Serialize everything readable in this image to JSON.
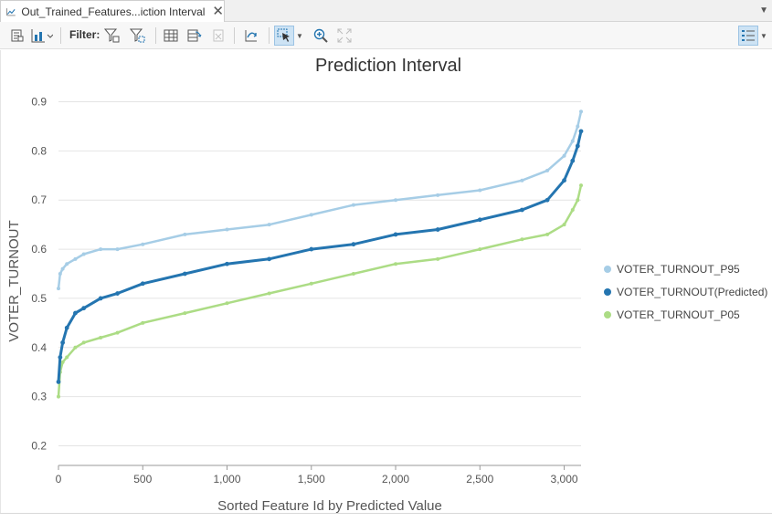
{
  "tab": {
    "title": "Out_Trained_Features...iction Interval",
    "close": "✕",
    "icon": "line-chart-icon"
  },
  "toolbar": {
    "filter_label": "Filter:",
    "icons": [
      "properties-icon",
      "chart-type-icon",
      "filter-by-extent-icon",
      "filter-by-selection-icon",
      "table-icon",
      "switch-selection-icon",
      "clear-selection-icon",
      "export-icon",
      "select-tool-icon",
      "zoom-in-icon",
      "full-extent-icon",
      "legend-toggle-icon"
    ]
  },
  "colors": {
    "p95": "#a6cde6",
    "predicted": "#2475b0",
    "p05": "#acdc85",
    "grid": "#e4e4e4",
    "axis_text": "#555555"
  },
  "chart_data": {
    "type": "line",
    "title": "Prediction Interval",
    "xlabel": "Sorted Feature Id by Predicted Value",
    "ylabel": "VOTER_TURNOUT",
    "xlim": [
      0,
      3100
    ],
    "ylim": [
      0.16,
      0.94
    ],
    "xticks": [
      0,
      500,
      1000,
      1500,
      2000,
      2500,
      3000
    ],
    "xtick_labels": [
      "0",
      "500",
      "1,000",
      "1,500",
      "2,000",
      "2,500",
      "3,000"
    ],
    "yticks": [
      0.2,
      0.3,
      0.4,
      0.5,
      0.6,
      0.7,
      0.8,
      0.9
    ],
    "ytick_labels": [
      "0.2",
      "0.3",
      "0.4",
      "0.5",
      "0.6",
      "0.7",
      "0.8",
      "0.9"
    ],
    "grid": "horizontal",
    "legend_position": "right",
    "x": [
      0,
      10,
      25,
      50,
      100,
      150,
      250,
      350,
      500,
      750,
      1000,
      1250,
      1500,
      1750,
      2000,
      2250,
      2500,
      2750,
      2900,
      3000,
      3050,
      3080,
      3100
    ],
    "series": [
      {
        "name": "VOTER_TURNOUT_P95",
        "values": [
          0.52,
          0.55,
          0.56,
          0.57,
          0.58,
          0.59,
          0.6,
          0.6,
          0.61,
          0.63,
          0.64,
          0.65,
          0.67,
          0.69,
          0.7,
          0.71,
          0.72,
          0.74,
          0.76,
          0.79,
          0.82,
          0.85,
          0.88
        ]
      },
      {
        "name": "VOTER_TURNOUT(Predicted)",
        "values": [
          0.33,
          0.38,
          0.41,
          0.44,
          0.47,
          0.48,
          0.5,
          0.51,
          0.53,
          0.55,
          0.57,
          0.58,
          0.6,
          0.61,
          0.63,
          0.64,
          0.66,
          0.68,
          0.7,
          0.74,
          0.78,
          0.81,
          0.84
        ]
      },
      {
        "name": "VOTER_TURNOUT_P05",
        "values": [
          0.3,
          0.35,
          0.37,
          0.38,
          0.4,
          0.41,
          0.42,
          0.43,
          0.45,
          0.47,
          0.49,
          0.51,
          0.53,
          0.55,
          0.57,
          0.58,
          0.6,
          0.62,
          0.63,
          0.65,
          0.68,
          0.7,
          0.73
        ]
      }
    ]
  }
}
